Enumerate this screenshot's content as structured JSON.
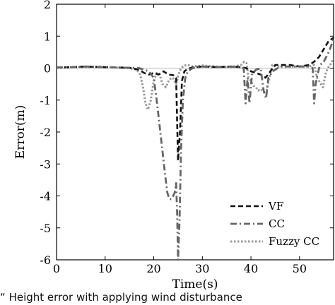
{
  "chart_data": {
    "type": "line",
    "xlabel": "Time(s)",
    "ylabel": "Error(m)",
    "xlim": [
      0,
      57
    ],
    "ylim": [
      -6,
      2
    ],
    "xticks": [
      0,
      10,
      20,
      30,
      40,
      50
    ],
    "yticks": [
      2,
      1,
      0,
      -1,
      -2,
      -3,
      -4,
      -5,
      -6
    ],
    "grid": false,
    "legend_position": "bottom-right",
    "series": [
      {
        "name": "VF",
        "color": "#111111",
        "dash": "dashed",
        "x": [
          0,
          3,
          6,
          9,
          12,
          15,
          17,
          18,
          19,
          20,
          21,
          22,
          23,
          24,
          24.6,
          25.0,
          25.4,
          25.8,
          26.3,
          27,
          28,
          30,
          33,
          36,
          38,
          39,
          40,
          41,
          42,
          43,
          44,
          45,
          48,
          50,
          52,
          53,
          54,
          55,
          56,
          57
        ],
        "y": [
          0.02,
          0.03,
          0.05,
          0.03,
          0.02,
          0.01,
          -0.05,
          -0.15,
          -0.2,
          -0.15,
          -0.2,
          -0.1,
          -0.2,
          -0.22,
          -0.3,
          -2.9,
          -2.0,
          -0.4,
          -0.1,
          -0.02,
          0.02,
          0.05,
          0.03,
          0.05,
          0.03,
          0.0,
          -0.1,
          -0.15,
          -0.2,
          -0.3,
          -0.1,
          0.1,
          0.1,
          0.05,
          0.1,
          0.2,
          0.35,
          0.6,
          0.85,
          0.95
        ]
      },
      {
        "name": "CC",
        "color": "#666666",
        "dash": "dashdot",
        "x": [
          0,
          3,
          6,
          9,
          12,
          15,
          17,
          18,
          19,
          20,
          20.6,
          21.2,
          21.8,
          22.3,
          22.8,
          23.2,
          23.6,
          24.0,
          24.3,
          24.6,
          24.8,
          25.0,
          25.3,
          25.6,
          26.0,
          26.5,
          27,
          28,
          30,
          33,
          36,
          38.5,
          38.9,
          39.3,
          39.7,
          40.2,
          41,
          42,
          42.6,
          43.1,
          43.6,
          44.5,
          46,
          48,
          50,
          52,
          52.7,
          53.0,
          53.3,
          53.7,
          54.2,
          55,
          56,
          57
        ],
        "y": [
          0.02,
          0.03,
          0.05,
          0.03,
          0.02,
          0.01,
          0.0,
          -0.05,
          -0.1,
          -0.3,
          -1.0,
          -1.8,
          -2.6,
          -3.3,
          -3.9,
          -4.1,
          -4.1,
          -4.0,
          -3.9,
          -3.6,
          -4.5,
          -6.0,
          -4.8,
          -2.6,
          -1.0,
          -0.3,
          -0.1,
          0.0,
          0.05,
          0.03,
          0.05,
          0.0,
          -1.1,
          -0.3,
          -1.1,
          -0.2,
          -0.05,
          0.0,
          -0.7,
          -0.95,
          -0.3,
          -0.1,
          0.05,
          0.05,
          0.05,
          0.05,
          0.0,
          -1.1,
          -0.5,
          -0.2,
          0.1,
          0.2,
          0.5,
          0.9
        ]
      },
      {
        "name": "Fuzzy CC",
        "color": "#999999",
        "dash": "dotted",
        "x": [
          0,
          3,
          6,
          9,
          12,
          15,
          16.5,
          17.2,
          17.8,
          18.3,
          18.8,
          19.4,
          20.0,
          20.6,
          21.2,
          21.8,
          22.5,
          23.2,
          23.9,
          24.6,
          25.1,
          25.6,
          26.3,
          27,
          28,
          30,
          33,
          36,
          38,
          38.6,
          39.1,
          39.5,
          40.0,
          40.5,
          41.0,
          41.5,
          42.0,
          42.6,
          43.2,
          43.8,
          44.4,
          45.5,
          48,
          50,
          52,
          53.0,
          53.6,
          54.2,
          54.8,
          55.3,
          55.8,
          56.3,
          57
        ],
        "y": [
          0.0,
          0.02,
          0.03,
          0.05,
          0.02,
          0.0,
          -0.05,
          -0.2,
          -0.6,
          -1.1,
          -1.3,
          -1.0,
          -0.4,
          -0.15,
          -0.2,
          -0.5,
          -0.6,
          -0.35,
          -0.3,
          -0.5,
          -0.2,
          0.0,
          0.08,
          0.1,
          0.05,
          0.08,
          0.05,
          0.03,
          0.1,
          0.2,
          0.15,
          -0.3,
          -0.4,
          -0.55,
          -0.6,
          -0.7,
          -0.65,
          -0.75,
          -0.7,
          -0.3,
          0.1,
          0.05,
          0.05,
          0.05,
          0.05,
          0.1,
          -0.3,
          -0.45,
          -0.6,
          -0.2,
          0.0,
          0.1,
          0.3
        ]
      }
    ]
  },
  "caption": "Height error with applying wind disturbance"
}
